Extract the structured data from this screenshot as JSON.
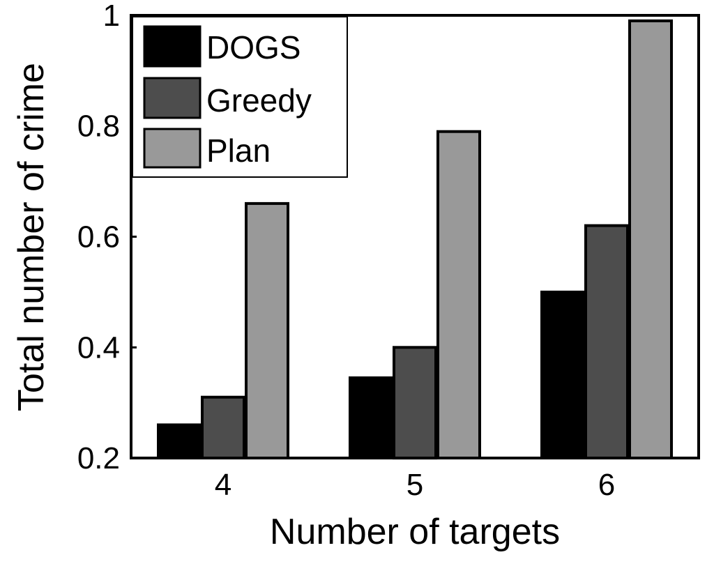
{
  "chart_data": {
    "type": "bar",
    "title": "",
    "xlabel": "Number of targets",
    "ylabel": "Total number of crime",
    "categories": [
      "4",
      "5",
      "6"
    ],
    "series": [
      {
        "name": "DOGS",
        "values": [
          0.26,
          0.345,
          0.5
        ],
        "color": "#000000"
      },
      {
        "name": "Greedy",
        "values": [
          0.31,
          0.4,
          0.62
        ],
        "color": "#4d4d4d"
      },
      {
        "name": "Plan",
        "values": [
          0.66,
          0.79,
          0.99
        ],
        "color": "#999999"
      }
    ],
    "ylim": [
      0.2,
      1.0
    ],
    "yticks": [
      "0.2",
      "0.4",
      "0.6",
      "0.8",
      "1"
    ],
    "grid": false,
    "legend_position": "top-left"
  }
}
